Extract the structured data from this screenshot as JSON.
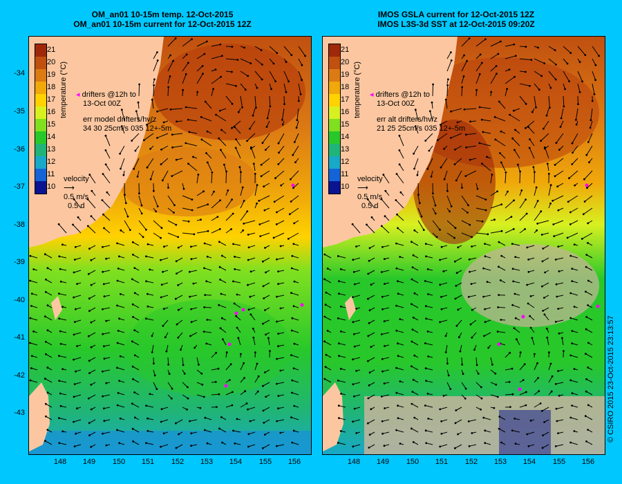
{
  "left_panel": {
    "title_line1": "OM_an01 10-15m temp. 12-Oct-2015",
    "title_line2": "OM_an01 10-15m current for 12-Oct-2015 12Z",
    "legend_drifters_line1": "drifters @12h to",
    "legend_drifters_line2": "13-Oct 00Z",
    "legend_err_line1": "err model drifters/hv/z",
    "legend_err_line2": "34 30 25cm/s 035 12+-5m",
    "velocity_label": "velocity",
    "velocity_scale": "0.5 m/s",
    "velocity_time": "0.5 d"
  },
  "right_panel": {
    "title_line1": "IMOS GSLA current for 12-Oct-2015 12Z",
    "title_line2": "IMOS L3S-3d SST at 12-Oct-2015 09:20Z",
    "legend_drifters_line1": "drifters @12h to",
    "legend_drifters_line2": "13-Oct 00Z",
    "legend_err_line1": "err alt drifters/hv/z",
    "legend_err_line2": "21 25 25cm/s 035 12+-5m",
    "velocity_label": "velocity",
    "velocity_scale": "0.5 m/s",
    "velocity_time": "0.5 d"
  },
  "colorbar": {
    "title": "temperature (°C)",
    "ticks": [
      "21",
      "20",
      "19",
      "18",
      "17",
      "16",
      "15",
      "14",
      "13",
      "12",
      "11",
      "10"
    ],
    "colors": [
      "#a0280a",
      "#c05010",
      "#dc7a14",
      "#f0a80a",
      "#ffd200",
      "#d8f020",
      "#80e020",
      "#28c82a",
      "#20b478",
      "#18a8c8",
      "#1464d8",
      "#0a1490"
    ]
  },
  "latitude_labels": [
    "-34",
    "-35",
    "-36",
    "-37",
    "-38",
    "-39",
    "-40",
    "-41",
    "-42",
    "-43"
  ],
  "longitude_labels": [
    "148",
    "149",
    "150",
    "151",
    "152",
    "153",
    "154",
    "155",
    "156"
  ],
  "credit": "© CSIRO 2015   23-Oct-2015 23:13:57",
  "colors": {
    "background": "#00c8ff",
    "land": "#fcc7a0",
    "drifter": "#ff00ff"
  }
}
